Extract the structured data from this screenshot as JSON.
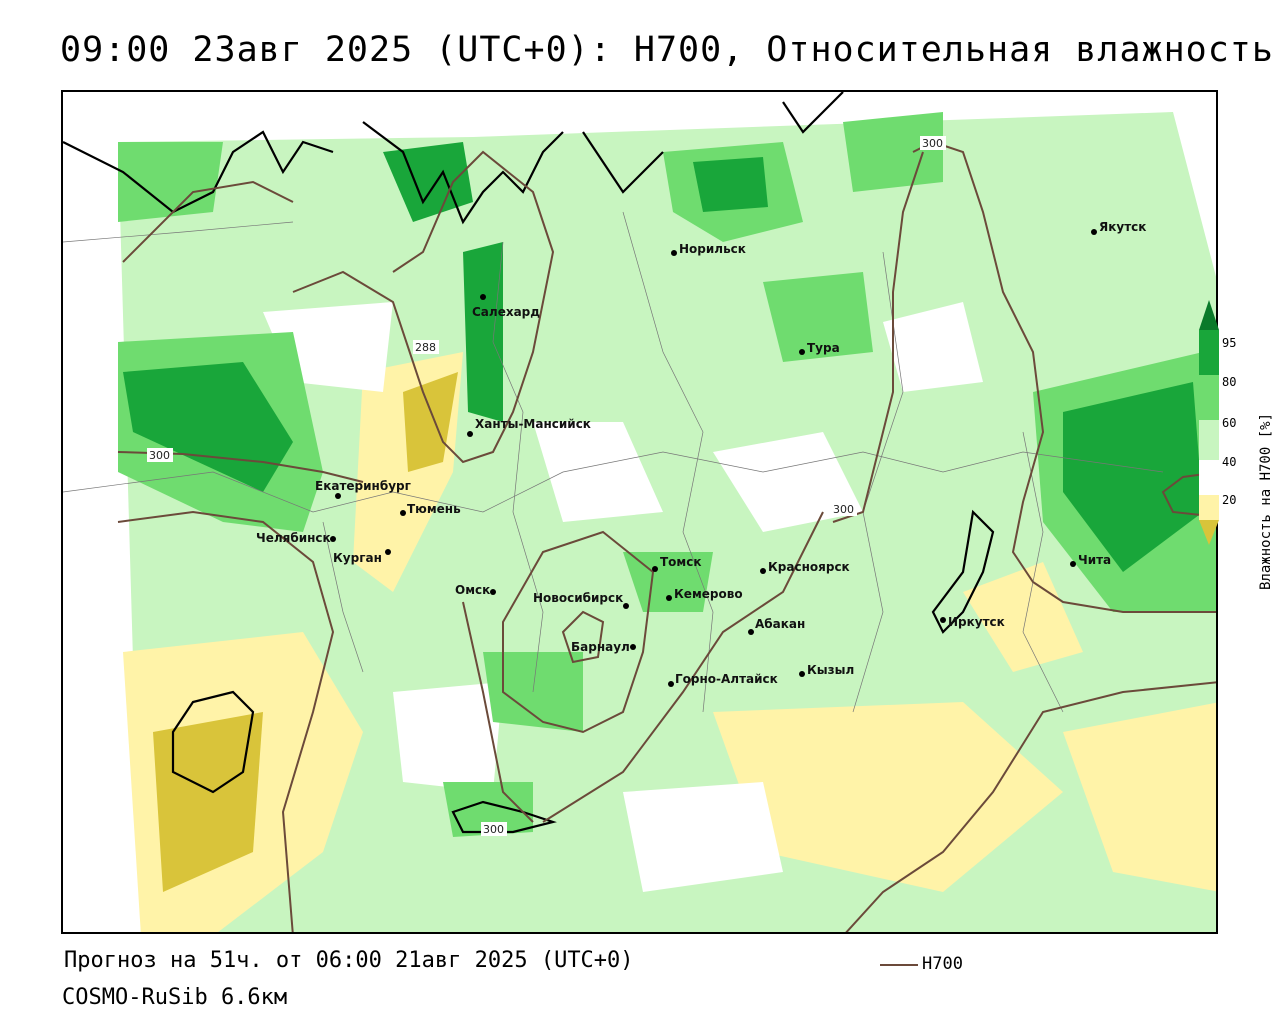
{
  "title": "09:00 23авг 2025 (UTC+0): H700, Относительная влажность",
  "footer": {
    "forecast": "Прогноз на 51ч. от 06:00 21авг 2025 (UTC+0)",
    "model": "COSMO-RuSib 6.6км"
  },
  "legend": {
    "contour_name": "H700",
    "contour_color": "#6b4a3a"
  },
  "colorbar": {
    "label": "Влажность на H700 [%]",
    "ticks": [
      "95",
      "80",
      "60",
      "40",
      "20"
    ],
    "colors": {
      "very_dry": "#d9c43a",
      "dry": "#fff3a8",
      "neutral": "#ffffff",
      "moist": "#c8f5c0",
      "wet": "#6fdc6f",
      "very_wet": "#19a63a",
      "saturated": "#0a7a2a"
    }
  },
  "cities": [
    {
      "name": "Якутск"
    },
    {
      "name": "Норильск"
    },
    {
      "name": "Салехард"
    },
    {
      "name": "Тура"
    },
    {
      "name": "Ханты-Мансийск"
    },
    {
      "name": "Екатеринбург"
    },
    {
      "name": "Тюмень"
    },
    {
      "name": "Челябинск"
    },
    {
      "name": "Курган"
    },
    {
      "name": "Омск"
    },
    {
      "name": "Новосибирск"
    },
    {
      "name": "Томск"
    },
    {
      "name": "Кемерово"
    },
    {
      "name": "Барнаул"
    },
    {
      "name": "Горно-Алтайск"
    },
    {
      "name": "Абакан"
    },
    {
      "name": "Кызыл"
    },
    {
      "name": "Красноярск"
    },
    {
      "name": "Иркутск"
    },
    {
      "name": "Чита"
    }
  ],
  "contour_labels": [
    "300",
    "288",
    "300",
    "300",
    "300"
  ]
}
